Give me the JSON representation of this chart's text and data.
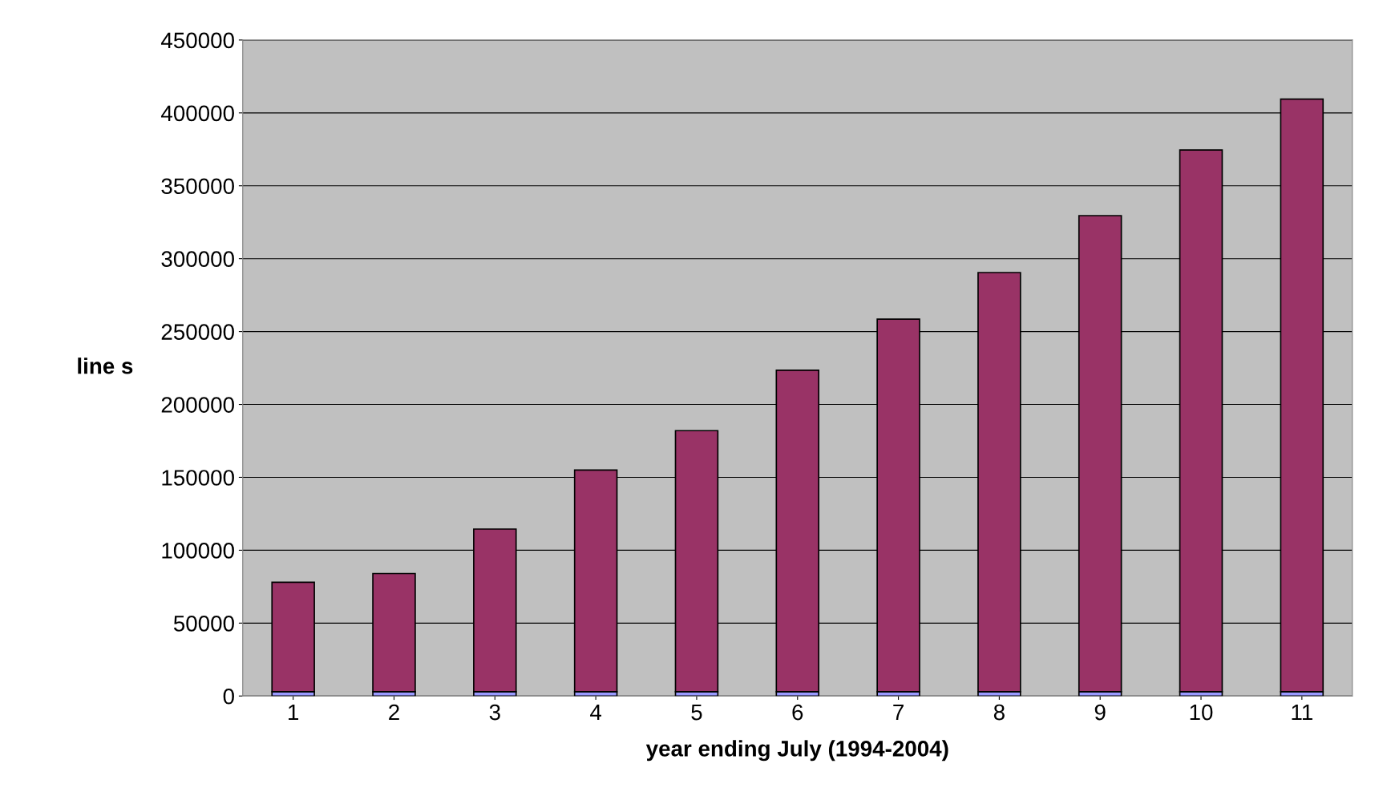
{
  "chart_data": {
    "type": "bar",
    "xlabel": "year ending July (1994-2004)",
    "ylabel": "line s",
    "categories": [
      "1",
      "2",
      "3",
      "4",
      "5",
      "6",
      "7",
      "8",
      "9",
      "10",
      "11"
    ],
    "stacked": true,
    "series": [
      {
        "color": "#9999ff",
        "values": [
          3000,
          3000,
          3000,
          3000,
          3000,
          3000,
          3000,
          3000,
          3000,
          3000,
          3000
        ]
      },
      {
        "color": "#993366",
        "values": [
          75000,
          81000,
          111500,
          152000,
          179000,
          220500,
          255500,
          287500,
          326500,
          371500,
          406500
        ]
      }
    ],
    "ylim": [
      0,
      450000
    ],
    "yticks": [
      0,
      50000,
      100000,
      150000,
      200000,
      250000,
      300000,
      350000,
      400000,
      450000
    ],
    "grid": "y"
  }
}
